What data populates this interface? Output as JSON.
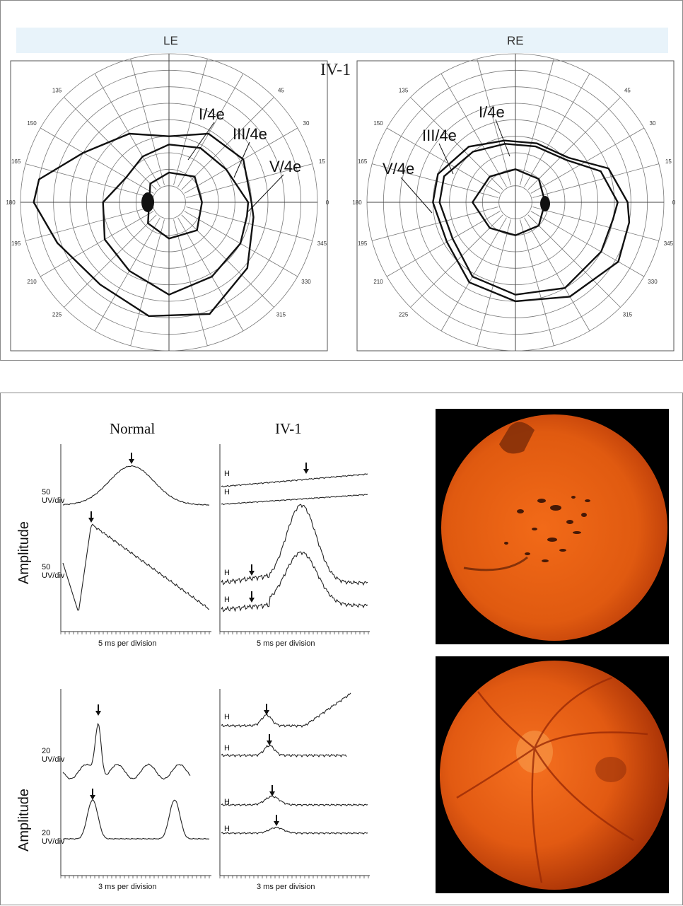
{
  "visual_fields": {
    "left_eye_label": "LE",
    "right_eye_label": "RE",
    "subject": "IV-1",
    "left_isopters": [
      "I/4e",
      "III/4e",
      "V/4e"
    ],
    "right_isopters": [
      "I/4e",
      "III/4e",
      "V/4e"
    ],
    "meridian_labels": [
      "135",
      "45",
      "150",
      "30",
      "165",
      "15",
      "180",
      "0",
      "195",
      "345",
      "210",
      "330",
      "225",
      "315"
    ]
  },
  "erg": {
    "col_normal": "Normal",
    "col_patient": "IV-1",
    "amplitude_label": "Amplitude",
    "unit_50_num": "50",
    "unit_50_den": "UV/div",
    "unit_20_num": "20",
    "unit_20_den": "UV/div",
    "timebase_5ms": "5 ms per division",
    "timebase_3ms": "3 ms per division",
    "trace_labels": [
      "H",
      "H"
    ]
  },
  "colors": {
    "fundus_orange": "#e65a10",
    "panel_border": "#8a8a8a",
    "band": "#e8f3fa"
  }
}
